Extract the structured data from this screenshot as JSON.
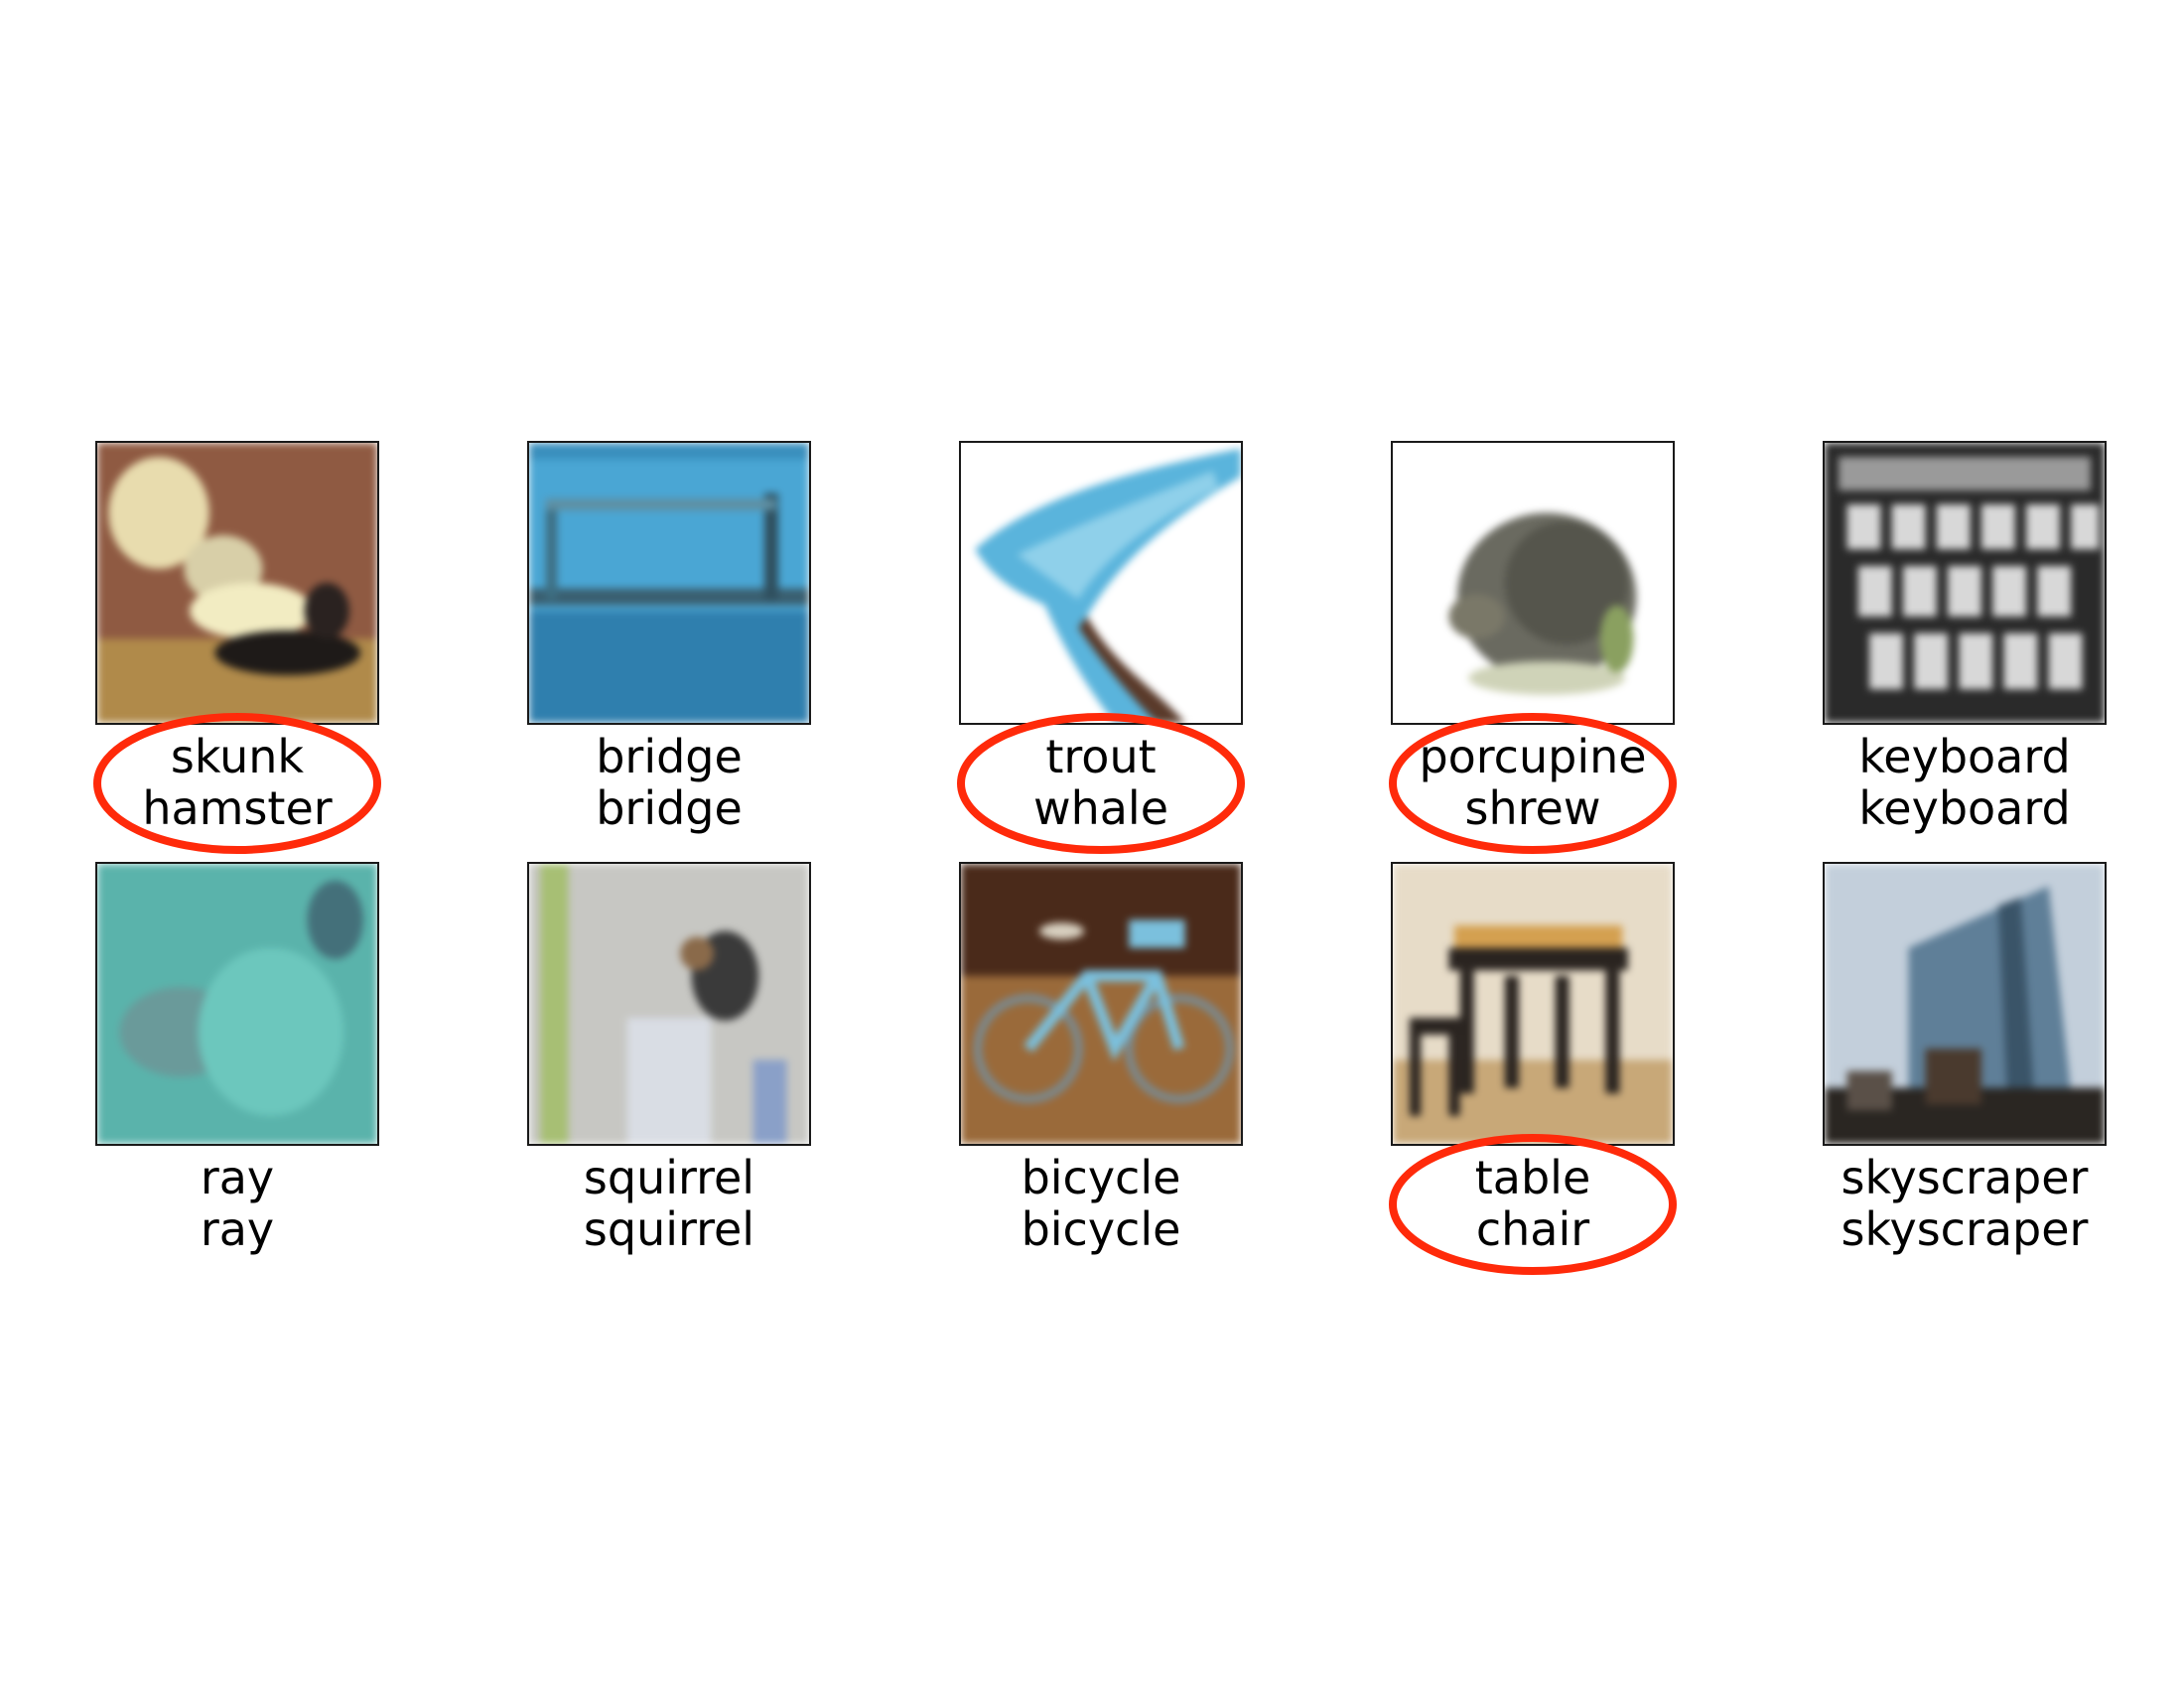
{
  "mismatch_color": "#ff2a0a",
  "cells": [
    {
      "image": "skunk-photo-icon",
      "line1": "skunk",
      "line2": "hamster",
      "circled": true
    },
    {
      "image": "bridge-photo-icon",
      "line1": "bridge",
      "line2": "bridge",
      "circled": false
    },
    {
      "image": "trout-photo-icon",
      "line1": "trout",
      "line2": "whale",
      "circled": true
    },
    {
      "image": "porcupine-photo-icon",
      "line1": "porcupine",
      "line2": "shrew",
      "circled": true
    },
    {
      "image": "keyboard-photo-icon",
      "line1": "keyboard",
      "line2": "keyboard",
      "circled": false
    },
    {
      "image": "ray-photo-icon",
      "line1": "ray",
      "line2": "ray",
      "circled": false
    },
    {
      "image": "squirrel-photo-icon",
      "line1": "squirrel",
      "line2": "squirrel",
      "circled": false
    },
    {
      "image": "bicycle-photo-icon",
      "line1": "bicycle",
      "line2": "bicycle",
      "circled": false
    },
    {
      "image": "table-photo-icon",
      "line1": "table",
      "line2": "chair",
      "circled": true
    },
    {
      "image": "skyscraper-photo-icon",
      "line1": "skyscraper",
      "line2": "skyscraper",
      "circled": false
    }
  ]
}
